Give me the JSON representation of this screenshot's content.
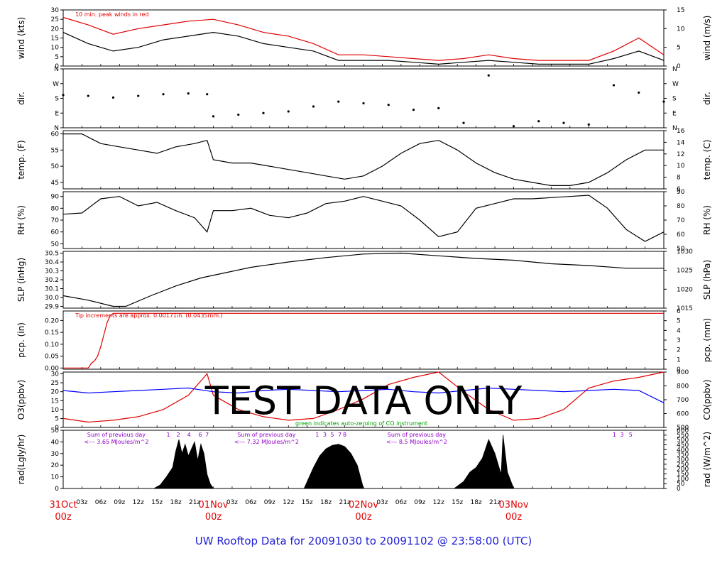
{
  "title": "UW Rooftop Data for 20091030  to  20091102 @ 23:58:00  (UTC)",
  "watermark": "TEST  DATA  ONLY",
  "colors": {
    "red": "#e00000",
    "blue": "#0000ff",
    "green": "#00a000",
    "purple": "#9000c8",
    "black": "#000000"
  },
  "time_axis": {
    "hour_labels": [
      "03z",
      "06z",
      "09z",
      "12z",
      "15z",
      "18z",
      "21z"
    ],
    "days": [
      {
        "line1": "31Oct",
        "line2": "00z"
      },
      {
        "line1": "01Nov",
        "line2": "00z"
      },
      {
        "line1": "02Nov",
        "line2": "00z"
      },
      {
        "line1": "03Nov",
        "line2": "00z"
      }
    ]
  },
  "chart_data": [
    {
      "type": "line",
      "id": "wind",
      "ylabel": "wind (kts)",
      "ylabel2": "wind (m/s)",
      "yticks": [
        0,
        5,
        10,
        15,
        20,
        25,
        30
      ],
      "ylim": [
        0,
        30
      ],
      "yticks2": [
        0,
        5,
        10,
        15
      ],
      "annotation": "10 min. peak winds in red",
      "series": [
        {
          "color": "#000000",
          "hours": [
            0,
            4,
            8,
            12,
            16,
            20,
            24,
            28,
            32,
            36,
            40,
            44,
            48,
            52,
            56,
            60,
            64,
            68,
            72,
            76,
            80,
            84,
            88,
            92,
            96
          ],
          "values": [
            18,
            12,
            8,
            10,
            14,
            16,
            18,
            16,
            12,
            10,
            8,
            3,
            3,
            3,
            2,
            1,
            2,
            3,
            2,
            1,
            1,
            1,
            4,
            8,
            3
          ]
        },
        {
          "color": "#e00000",
          "hours": [
            0,
            4,
            8,
            12,
            16,
            20,
            24,
            28,
            32,
            36,
            40,
            44,
            48,
            52,
            56,
            60,
            64,
            68,
            72,
            76,
            80,
            84,
            88,
            92,
            96
          ],
          "values": [
            26,
            22,
            17,
            20,
            22,
            24,
            25,
            22,
            18,
            16,
            12,
            6,
            6,
            5,
            4,
            3,
            4,
            6,
            4,
            3,
            3,
            3,
            8,
            15,
            6
          ]
        }
      ]
    },
    {
      "type": "scatter",
      "id": "dir",
      "ylabel": "dir.",
      "ylabel2": "dir.",
      "ytick_labels": [
        "N",
        "E",
        "S",
        "W",
        "N"
      ],
      "ylim": [
        0,
        360
      ],
      "series": [
        {
          "color": "#000000",
          "hours": [
            0,
            4,
            8,
            12,
            16,
            20,
            23,
            24,
            28,
            32,
            36,
            40,
            44,
            48,
            52,
            56,
            60,
            64,
            68,
            72,
            76,
            80,
            84,
            88,
            92,
            96
          ],
          "values": [
            200,
            195,
            185,
            195,
            205,
            210,
            205,
            70,
            80,
            90,
            100,
            130,
            160,
            150,
            140,
            110,
            120,
            30,
            320,
            10,
            40,
            30,
            20,
            260,
            215,
            160
          ]
        }
      ]
    },
    {
      "type": "line",
      "id": "temp",
      "ylabel": "temp. (F)",
      "ylabel2": "temp. (C)",
      "yticks": [
        45,
        50,
        55,
        60
      ],
      "ylim": [
        43,
        61
      ],
      "yticks2": [
        6,
        8,
        10,
        12,
        14,
        16
      ],
      "series": [
        {
          "color": "#000000",
          "hours": [
            0,
            3,
            6,
            9,
            12,
            15,
            18,
            21,
            23,
            24,
            27,
            30,
            33,
            36,
            39,
            42,
            45,
            48,
            51,
            54,
            57,
            60,
            63,
            66,
            69,
            72,
            75,
            78,
            81,
            84,
            87,
            90,
            93,
            96
          ],
          "values": [
            60,
            60,
            57,
            56,
            55,
            54,
            56,
            57,
            58,
            52,
            51,
            51,
            50,
            49,
            48,
            47,
            46,
            47,
            50,
            54,
            57,
            58,
            55,
            51,
            48,
            46,
            45,
            44,
            44,
            45,
            48,
            52,
            55,
            55
          ]
        }
      ]
    },
    {
      "type": "line",
      "id": "rh",
      "ylabel": "RH (%)",
      "ylabel2": "RH (%)",
      "yticks": [
        50,
        60,
        70,
        80,
        90
      ],
      "ylim": [
        46,
        94
      ],
      "yticks2": [
        50,
        60,
        70,
        80,
        90
      ],
      "series": [
        {
          "color": "#000000",
          "hours": [
            0,
            3,
            6,
            9,
            12,
            15,
            18,
            21,
            23,
            24,
            27,
            30,
            33,
            36,
            39,
            42,
            45,
            48,
            51,
            54,
            57,
            60,
            63,
            66,
            69,
            72,
            75,
            78,
            81,
            84,
            87,
            90,
            93,
            96
          ],
          "values": [
            75,
            76,
            88,
            90,
            82,
            85,
            78,
            72,
            60,
            78,
            78,
            80,
            74,
            72,
            76,
            84,
            86,
            90,
            86,
            82,
            70,
            56,
            60,
            80,
            84,
            88,
            88,
            89,
            90,
            91,
            80,
            62,
            52,
            60
          ]
        }
      ]
    },
    {
      "type": "line",
      "id": "slp",
      "ylabel": "SLP (inHg)",
      "ylabel2": "SLP (hPa)",
      "yticks": [
        29.9,
        30.0,
        30.1,
        30.2,
        30.3,
        30.4,
        30.5
      ],
      "ylim": [
        29.88,
        30.52
      ],
      "ytick_labels": [
        "29.9",
        "30.0",
        "30.1",
        "30.2",
        "30.3",
        "30.4",
        "30.5"
      ],
      "ytick_labels2": [
        "1015",
        "1020",
        "1025",
        "1030"
      ],
      "series": [
        {
          "color": "#000000",
          "hours": [
            0,
            4,
            8,
            10,
            14,
            18,
            22,
            26,
            30,
            36,
            42,
            48,
            54,
            60,
            66,
            72,
            78,
            84,
            90,
            96
          ],
          "values": [
            30.02,
            29.97,
            29.9,
            29.9,
            30.02,
            30.13,
            30.22,
            30.28,
            30.34,
            30.4,
            30.45,
            30.49,
            30.5,
            30.47,
            30.44,
            30.42,
            30.38,
            30.36,
            30.33,
            30.33
          ]
        }
      ]
    },
    {
      "type": "line",
      "id": "pcp",
      "ylabel": "pcp. (in)",
      "ylabel2": "pcp. (mm)",
      "yticks": [
        0.0,
        0.05,
        0.1,
        0.15,
        0.2
      ],
      "ylim": [
        -0.005,
        0.24
      ],
      "ytick_labels": [
        "0.00",
        "0.05",
        "0.10",
        "0.15",
        "0.20"
      ],
      "yticks2": [
        0,
        1,
        2,
        3,
        4,
        5,
        6
      ],
      "annotation": "Tip increments are approx. 0.00171in. (0.0435mm.)",
      "series": [
        {
          "color": "#e00000",
          "hours": [
            0,
            4,
            4.5,
            5,
            5.5,
            6,
            6.5,
            7,
            7.5,
            8,
            96
          ],
          "values": [
            0,
            0,
            0.02,
            0.03,
            0.05,
            0.09,
            0.14,
            0.19,
            0.22,
            0.23,
            0.23
          ]
        }
      ]
    },
    {
      "type": "line",
      "id": "o3co",
      "ylabel": "O3(ppbv)",
      "ylabel2": "CO(ppbv)",
      "yticks": [
        0,
        5,
        10,
        15,
        20,
        25,
        30
      ],
      "ylim": [
        0,
        31
      ],
      "yticks2": [
        500,
        600,
        700,
        800,
        900
      ],
      "annotation": "green indicates auto-zeroing of CO instrument",
      "series": [
        {
          "name": "O3(ppbv)",
          "color": "#e00000",
          "hours": [
            0,
            4,
            8,
            12,
            16,
            20,
            23,
            24,
            28,
            32,
            36,
            40,
            44,
            48,
            52,
            56,
            60,
            64,
            68,
            72,
            76,
            80,
            84,
            88,
            92,
            96
          ],
          "values": [
            5,
            3,
            4,
            6,
            10,
            18,
            30,
            18,
            10,
            6,
            4,
            5,
            10,
            16,
            24,
            28,
            31,
            20,
            10,
            4,
            5,
            10,
            22,
            26,
            28,
            32
          ]
        },
        {
          "name": "CO(ppbv)",
          "color": "#0000ff",
          "hours": [
            0,
            4,
            8,
            12,
            16,
            20,
            24,
            28,
            32,
            36,
            40,
            44,
            48,
            52,
            56,
            60,
            64,
            68,
            72,
            76,
            80,
            84,
            88,
            92,
            96
          ],
          "values": [
            800,
            780,
            790,
            800,
            810,
            820,
            790,
            780,
            800,
            810,
            800,
            790,
            800,
            810,
            790,
            780,
            800,
            820,
            810,
            800,
            790,
            800,
            810,
            800,
            700
          ]
        }
      ]
    },
    {
      "type": "area",
      "id": "rad",
      "ylabel": "rad(Lgly/hr)",
      "ylabel2": "rad (W/m^2)",
      "yticks": [
        0,
        10,
        20,
        30,
        40,
        50
      ],
      "ylim": [
        0,
        50
      ],
      "yticks2": [
        0,
        50,
        100,
        150,
        200,
        250,
        300,
        350,
        400,
        450,
        500,
        550,
        600
      ],
      "annotations": [
        {
          "line1": "Sum of previous day",
          "line2": "<--- 3.65 MJoules/m^2",
          "hour": 8.5
        },
        {
          "line1": "Sum of previous day",
          "line2": "<--- 7.32 MJoules/m^2",
          "hour": 32.5
        },
        {
          "line1": "Sum of previous day",
          "line2": "<--- 8.5 MJoules/m^2",
          "hour": 56.5
        }
      ],
      "marker_numbers": [
        {
          "text": "1",
          "hour": 16.8
        },
        {
          "text": "2",
          "hour": 18.4
        },
        {
          "text": "4",
          "hour": 20.1
        },
        {
          "text": "6",
          "hour": 21.9
        },
        {
          "text": "7",
          "hour": 23.0
        },
        {
          "text": "1",
          "hour": 40.6
        },
        {
          "text": "3",
          "hour": 41.8
        },
        {
          "text": "5",
          "hour": 43.0
        },
        {
          "text": "7",
          "hour": 44.2
        },
        {
          "text": "8",
          "hour": 45.0
        },
        {
          "text": "1",
          "hour": 88.1
        },
        {
          "text": "3",
          "hour": 89.3
        },
        {
          "text": "5",
          "hour": 90.7
        }
      ],
      "series": [
        {
          "color": "#000000",
          "hours": [
            0,
            14.5,
            15.5,
            16.5,
            17,
            17.5,
            18,
            18.5,
            19,
            19.5,
            20,
            20.5,
            21,
            21.5,
            22,
            22.5,
            23,
            23.5,
            24,
            38.5,
            40,
            41,
            42,
            43,
            44,
            45,
            46,
            47,
            48,
            62.5,
            64,
            65,
            66,
            67,
            68,
            69,
            70,
            70.3,
            71,
            72
          ],
          "values": [
            0,
            0,
            3,
            10,
            14,
            18,
            32,
            42,
            30,
            38,
            28,
            34,
            40,
            24,
            38,
            30,
            12,
            4,
            0,
            0,
            18,
            28,
            34,
            37,
            38,
            36,
            30,
            20,
            0,
            0,
            6,
            14,
            18,
            26,
            42,
            30,
            12,
            46,
            14,
            0
          ]
        }
      ]
    }
  ]
}
